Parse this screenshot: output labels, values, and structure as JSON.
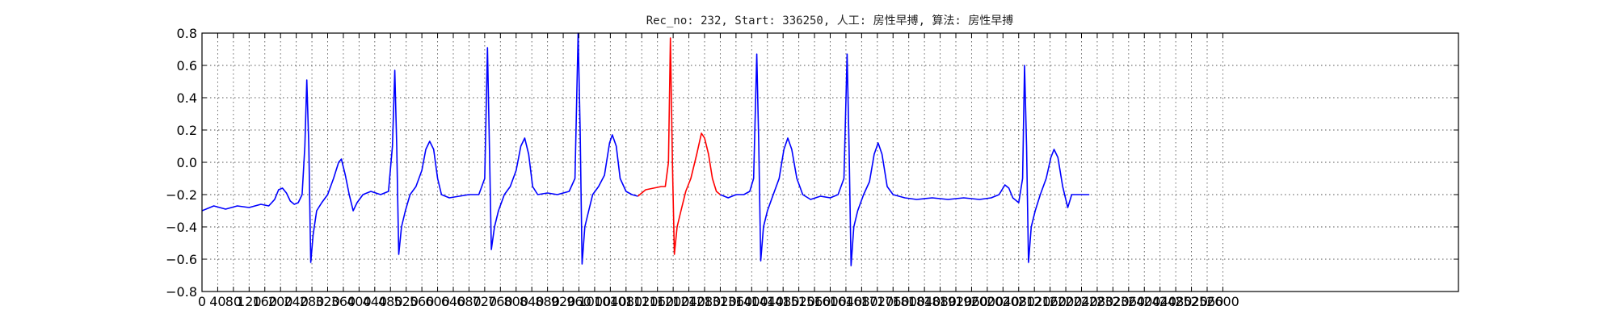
{
  "chart_data": {
    "type": "line",
    "title": "Rec_no: 232, Start: 336250, 人工: 房性早搏, 算法: 房性早搏",
    "xlabel": "",
    "ylabel": "",
    "xlim": [
      0,
      3200
    ],
    "ylim": [
      -0.8,
      0.8
    ],
    "grid": true,
    "x_ticks": [
      0,
      40,
      80,
      120,
      160,
      200,
      240,
      280,
      320,
      360,
      400,
      440,
      480,
      520,
      560,
      600,
      640,
      680,
      720,
      760,
      800,
      840,
      880,
      920,
      960,
      1000,
      1040,
      1080,
      1120,
      1160,
      1200,
      1240,
      1280,
      1320,
      1360,
      1400,
      1440,
      1480,
      1520,
      1560,
      1600,
      1640,
      1680,
      1720,
      1760,
      1800,
      1840,
      1880,
      1920,
      1960,
      2000,
      2040,
      2080,
      2120,
      2160,
      2200,
      2240,
      2280,
      2320,
      2360,
      2400,
      2440,
      2480,
      2520,
      2560,
      2600
    ],
    "x_tick_labels": [
      "0",
      "40",
      "80",
      "120",
      "160",
      "200",
      "240",
      "280",
      "320",
      "360",
      "400",
      "440",
      "480",
      "520",
      "560",
      "600",
      "640",
      "680",
      "720",
      "760",
      "800",
      "840",
      "880",
      "920",
      "960",
      "1000",
      "1040",
      "1080",
      "1120",
      "1160",
      "1200",
      "1240",
      "1280",
      "1320",
      "1360",
      "1400",
      "1440",
      "1480",
      "1520",
      "1560",
      "1600",
      "1640",
      "1680",
      "1720",
      "1760",
      "1800",
      "1840",
      "1880",
      "1920",
      "1960",
      "2000",
      "2040",
      "2080",
      "2120",
      "2160",
      "2200",
      "2240",
      "2280",
      "2320",
      "2360",
      "2400",
      "2440",
      "2480",
      "2520",
      "2560",
      "2600"
    ],
    "y_ticks": [
      -0.8,
      -0.6,
      -0.4,
      -0.2,
      0.0,
      0.2,
      0.4,
      0.6,
      0.8
    ],
    "y_tick_labels": [
      "−0.8",
      "−0.6",
      "−0.4",
      "−0.2",
      "0.0",
      "0.2",
      "0.4",
      "0.6",
      "0.8"
    ],
    "series": [
      {
        "color": "#0000ff",
        "points": [
          [
            0,
            -0.3
          ],
          [
            30,
            -0.27
          ],
          [
            60,
            -0.29
          ],
          [
            90,
            -0.27
          ],
          [
            120,
            -0.28
          ],
          [
            150,
            -0.26
          ],
          [
            170,
            -0.27
          ],
          [
            185,
            -0.23
          ],
          [
            195,
            -0.17
          ],
          [
            205,
            -0.16
          ],
          [
            215,
            -0.19
          ],
          [
            225,
            -0.24
          ],
          [
            235,
            -0.26
          ],
          [
            245,
            -0.25
          ],
          [
            255,
            -0.2
          ],
          [
            262,
            0.1
          ],
          [
            267,
            0.51
          ],
          [
            272,
            0.1
          ],
          [
            277,
            -0.62
          ],
          [
            283,
            -0.45
          ],
          [
            292,
            -0.3
          ],
          [
            305,
            -0.25
          ],
          [
            320,
            -0.2
          ],
          [
            335,
            -0.1
          ],
          [
            348,
            0.0
          ],
          [
            355,
            0.02
          ],
          [
            365,
            -0.08
          ],
          [
            375,
            -0.2
          ],
          [
            385,
            -0.3
          ],
          [
            395,
            -0.25
          ],
          [
            410,
            -0.2
          ],
          [
            430,
            -0.18
          ],
          [
            455,
            -0.2
          ],
          [
            475,
            -0.18
          ],
          [
            485,
            0.1
          ],
          [
            491,
            0.57
          ],
          [
            496,
            0.1
          ],
          [
            501,
            -0.57
          ],
          [
            508,
            -0.4
          ],
          [
            518,
            -0.3
          ],
          [
            530,
            -0.2
          ],
          [
            545,
            -0.15
          ],
          [
            560,
            -0.05
          ],
          [
            570,
            0.08
          ],
          [
            580,
            0.13
          ],
          [
            590,
            0.08
          ],
          [
            600,
            -0.1
          ],
          [
            610,
            -0.2
          ],
          [
            630,
            -0.22
          ],
          [
            655,
            -0.21
          ],
          [
            680,
            -0.2
          ],
          [
            705,
            -0.2
          ],
          [
            720,
            -0.1
          ],
          [
            727,
            0.71
          ],
          [
            732,
            0.1
          ],
          [
            737,
            -0.54
          ],
          [
            745,
            -0.4
          ],
          [
            755,
            -0.3
          ],
          [
            770,
            -0.2
          ],
          [
            785,
            -0.15
          ],
          [
            800,
            -0.05
          ],
          [
            812,
            0.1
          ],
          [
            822,
            0.15
          ],
          [
            832,
            0.05
          ],
          [
            842,
            -0.15
          ],
          [
            855,
            -0.2
          ],
          [
            880,
            -0.19
          ],
          [
            905,
            -0.2
          ],
          [
            935,
            -0.18
          ],
          [
            950,
            -0.1
          ],
          [
            958,
            0.8
          ],
          [
            963,
            0.2
          ],
          [
            968,
            -0.63
          ],
          [
            975,
            -0.4
          ],
          [
            985,
            -0.3
          ],
          [
            995,
            -0.2
          ],
          [
            1010,
            -0.15
          ],
          [
            1025,
            -0.08
          ],
          [
            1038,
            0.12
          ],
          [
            1045,
            0.17
          ],
          [
            1055,
            0.1
          ],
          [
            1065,
            -0.1
          ],
          [
            1080,
            -0.18
          ],
          [
            1095,
            -0.2
          ],
          [
            1110,
            -0.21
          ]
        ]
      },
      {
        "color": "#ff0000",
        "points": [
          [
            1110,
            -0.21
          ],
          [
            1130,
            -0.17
          ],
          [
            1150,
            -0.16
          ],
          [
            1170,
            -0.15
          ],
          [
            1180,
            -0.15
          ],
          [
            1188,
            0.0
          ],
          [
            1193,
            0.77
          ],
          [
            1198,
            0.0
          ],
          [
            1203,
            -0.57
          ],
          [
            1210,
            -0.4
          ],
          [
            1220,
            -0.3
          ],
          [
            1232,
            -0.18
          ],
          [
            1245,
            -0.1
          ],
          [
            1260,
            0.05
          ],
          [
            1272,
            0.18
          ],
          [
            1280,
            0.15
          ],
          [
            1290,
            0.05
          ],
          [
            1300,
            -0.1
          ],
          [
            1310,
            -0.18
          ],
          [
            1320,
            -0.2
          ]
        ]
      },
      {
        "color": "#0000ff",
        "points": [
          [
            1320,
            -0.2
          ],
          [
            1340,
            -0.22
          ],
          [
            1360,
            -0.2
          ],
          [
            1380,
            -0.2
          ],
          [
            1395,
            -0.18
          ],
          [
            1405,
            -0.1
          ],
          [
            1413,
            0.67
          ],
          [
            1418,
            0.1
          ],
          [
            1423,
            -0.61
          ],
          [
            1430,
            -0.4
          ],
          [
            1440,
            -0.3
          ],
          [
            1455,
            -0.2
          ],
          [
            1470,
            -0.1
          ],
          [
            1482,
            0.08
          ],
          [
            1492,
            0.15
          ],
          [
            1502,
            0.08
          ],
          [
            1515,
            -0.1
          ],
          [
            1530,
            -0.2
          ],
          [
            1550,
            -0.23
          ],
          [
            1575,
            -0.21
          ],
          [
            1600,
            -0.22
          ],
          [
            1620,
            -0.2
          ],
          [
            1635,
            -0.1
          ],
          [
            1643,
            0.67
          ],
          [
            1648,
            0.1
          ],
          [
            1653,
            -0.64
          ],
          [
            1660,
            -0.4
          ],
          [
            1670,
            -0.3
          ],
          [
            1685,
            -0.2
          ],
          [
            1700,
            -0.12
          ],
          [
            1712,
            0.05
          ],
          [
            1722,
            0.12
          ],
          [
            1732,
            0.05
          ],
          [
            1745,
            -0.15
          ],
          [
            1760,
            -0.2
          ],
          [
            1790,
            -0.22
          ],
          [
            1820,
            -0.23
          ],
          [
            1860,
            -0.22
          ],
          [
            1900,
            -0.23
          ],
          [
            1940,
            -0.22
          ],
          [
            1980,
            -0.23
          ],
          [
            2010,
            -0.22
          ],
          [
            2030,
            -0.2
          ],
          [
            2045,
            -0.14
          ],
          [
            2055,
            -0.16
          ],
          [
            2065,
            -0.22
          ],
          [
            2080,
            -0.25
          ],
          [
            2090,
            -0.1
          ],
          [
            2095,
            0.6
          ],
          [
            2100,
            0.1
          ],
          [
            2105,
            -0.62
          ],
          [
            2112,
            -0.4
          ],
          [
            2122,
            -0.3
          ],
          [
            2135,
            -0.2
          ],
          [
            2150,
            -0.1
          ],
          [
            2162,
            0.03
          ],
          [
            2170,
            0.08
          ],
          [
            2180,
            0.03
          ],
          [
            2192,
            -0.15
          ],
          [
            2205,
            -0.28
          ],
          [
            2215,
            -0.2
          ],
          [
            2240,
            -0.2
          ],
          [
            2260,
            -0.2
          ]
        ]
      }
    ]
  }
}
